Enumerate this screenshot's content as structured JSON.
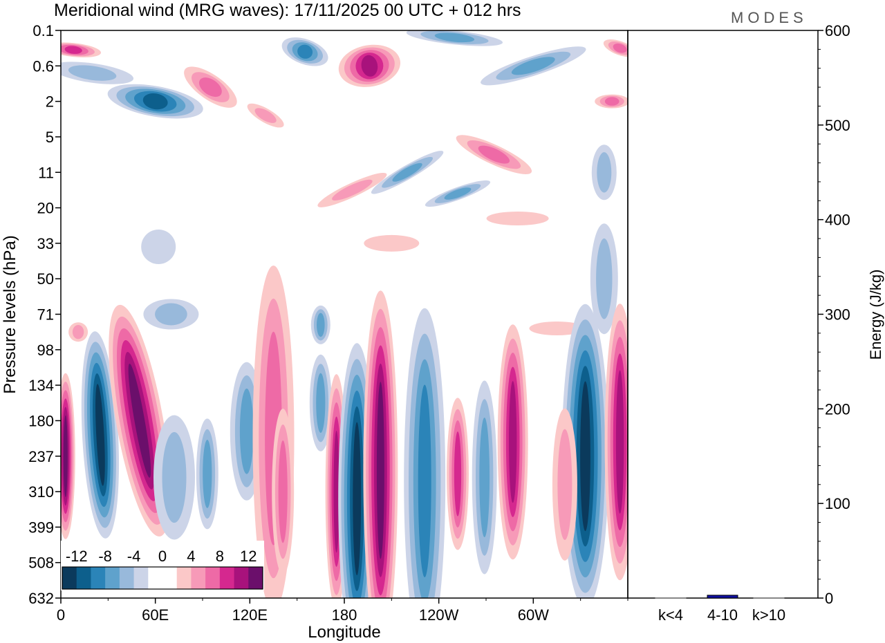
{
  "chart_data": [
    {
      "type": "heatmap",
      "title": "Meridional wind (MRG waves):  17/11/2025  00 UTC  + 012 hrs",
      "brand": "MODES",
      "xlabel": "Longitude",
      "ylabel": "Pressure levels (hPa)",
      "x_ticks": [
        "0",
        "60E",
        "120E",
        "180",
        "120W",
        "60W"
      ],
      "x_tick_values": [
        0,
        60,
        120,
        180,
        240,
        300
      ],
      "xlim": [
        0,
        360
      ],
      "y_ticks": [
        "0.1",
        "0.6",
        "2",
        "5",
        "11",
        "20",
        "33",
        "50",
        "71",
        "98",
        "134",
        "180",
        "237",
        "310",
        "399",
        "508",
        "632"
      ],
      "colorbar": {
        "labels": [
          "-12",
          "-8",
          "-4",
          "0",
          "4",
          "8",
          "12"
        ],
        "colors": [
          "#0b3a5c",
          "#0d5f8c",
          "#2b84b8",
          "#5fa2cc",
          "#98b9db",
          "#ccd4e8",
          "#ffffff",
          "#ffffff",
          "#fbc8c8",
          "#f79ab8",
          "#ee6aa6",
          "#d5288f",
          "#a8127c",
          "#6b0f6b"
        ]
      },
      "features": [
        {
          "name": "negative-lower-1",
          "sign": -1,
          "lon": 25,
          "level": "180",
          "amplitude": 12
        },
        {
          "name": "positive-lower-1",
          "sign": 1,
          "lon": 50,
          "level": "134",
          "amplitude": 14
        },
        {
          "name": "negative-lower-2",
          "sign": -1,
          "lon": 188,
          "level": "237",
          "amplitude": 16
        },
        {
          "name": "positive-lower-2",
          "sign": 1,
          "lon": 203,
          "level": "180",
          "amplitude": 12
        },
        {
          "name": "negative-lower-3",
          "sign": -1,
          "lon": 333,
          "level": "180",
          "amplitude": 16
        },
        {
          "name": "positive-lower-3",
          "sign": 1,
          "lon": 355,
          "level": "180",
          "amplitude": 12
        },
        {
          "name": "negative-upper-1",
          "sign": -1,
          "lon": 65,
          "level": "2",
          "amplitude": 12
        },
        {
          "name": "positive-upper-1",
          "sign": 1,
          "lon": 196,
          "level": "0.6",
          "amplitude": 13
        },
        {
          "name": "negative-upper-2",
          "sign": -1,
          "lon": 155,
          "level": "0.1",
          "amplitude": 8
        }
      ]
    },
    {
      "type": "bar",
      "categories": [
        "k<4",
        "4-10",
        "k>10"
      ],
      "values": [
        0,
        3,
        0
      ],
      "ylabel": "Energy (J/kg)",
      "ylim": [
        0,
        600
      ],
      "y_ticks": [
        "0",
        "100",
        "200",
        "300",
        "400",
        "500",
        "600"
      ],
      "bar_color": "#1010a0"
    }
  ]
}
